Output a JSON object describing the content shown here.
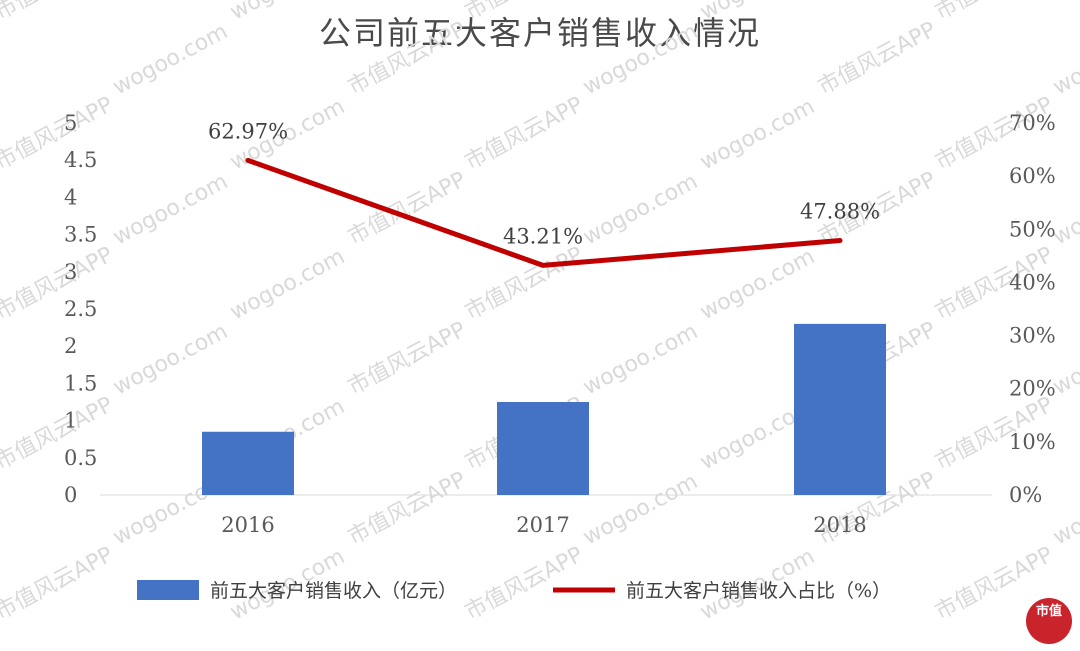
{
  "chart_data": {
    "type": "bar",
    "title": "公司前五大客户销售收入情况",
    "categories": [
      "2016",
      "2017",
      "2018"
    ],
    "series": [
      {
        "name": "前五大客户销售收入（亿元）",
        "type": "bar",
        "axis": "left",
        "color": "#4472c4",
        "values": [
          0.85,
          1.25,
          2.3
        ]
      },
      {
        "name": "前五大客户销售收入占比（%）",
        "type": "line",
        "axis": "right",
        "color": "#c00000",
        "values": [
          62.97,
          43.21,
          47.88
        ],
        "labels": [
          "62.97%",
          "43.21%",
          "47.88%"
        ]
      }
    ],
    "y_left": {
      "ylim": [
        0,
        5
      ],
      "ticks": [
        "0",
        "0.5",
        "1",
        "1.5",
        "2",
        "2.5",
        "3",
        "3.5",
        "4",
        "4.5",
        "5"
      ]
    },
    "y_right": {
      "ylim": [
        0,
        70
      ],
      "ticks": [
        "0%",
        "10%",
        "20%",
        "30%",
        "40%",
        "50%",
        "60%",
        "70%"
      ]
    },
    "legend_position": "bottom",
    "grid": false
  },
  "watermark": {
    "text_cn": "市值风云APP",
    "text_en": "wogoo.com"
  },
  "seal": {
    "text": "市值"
  }
}
